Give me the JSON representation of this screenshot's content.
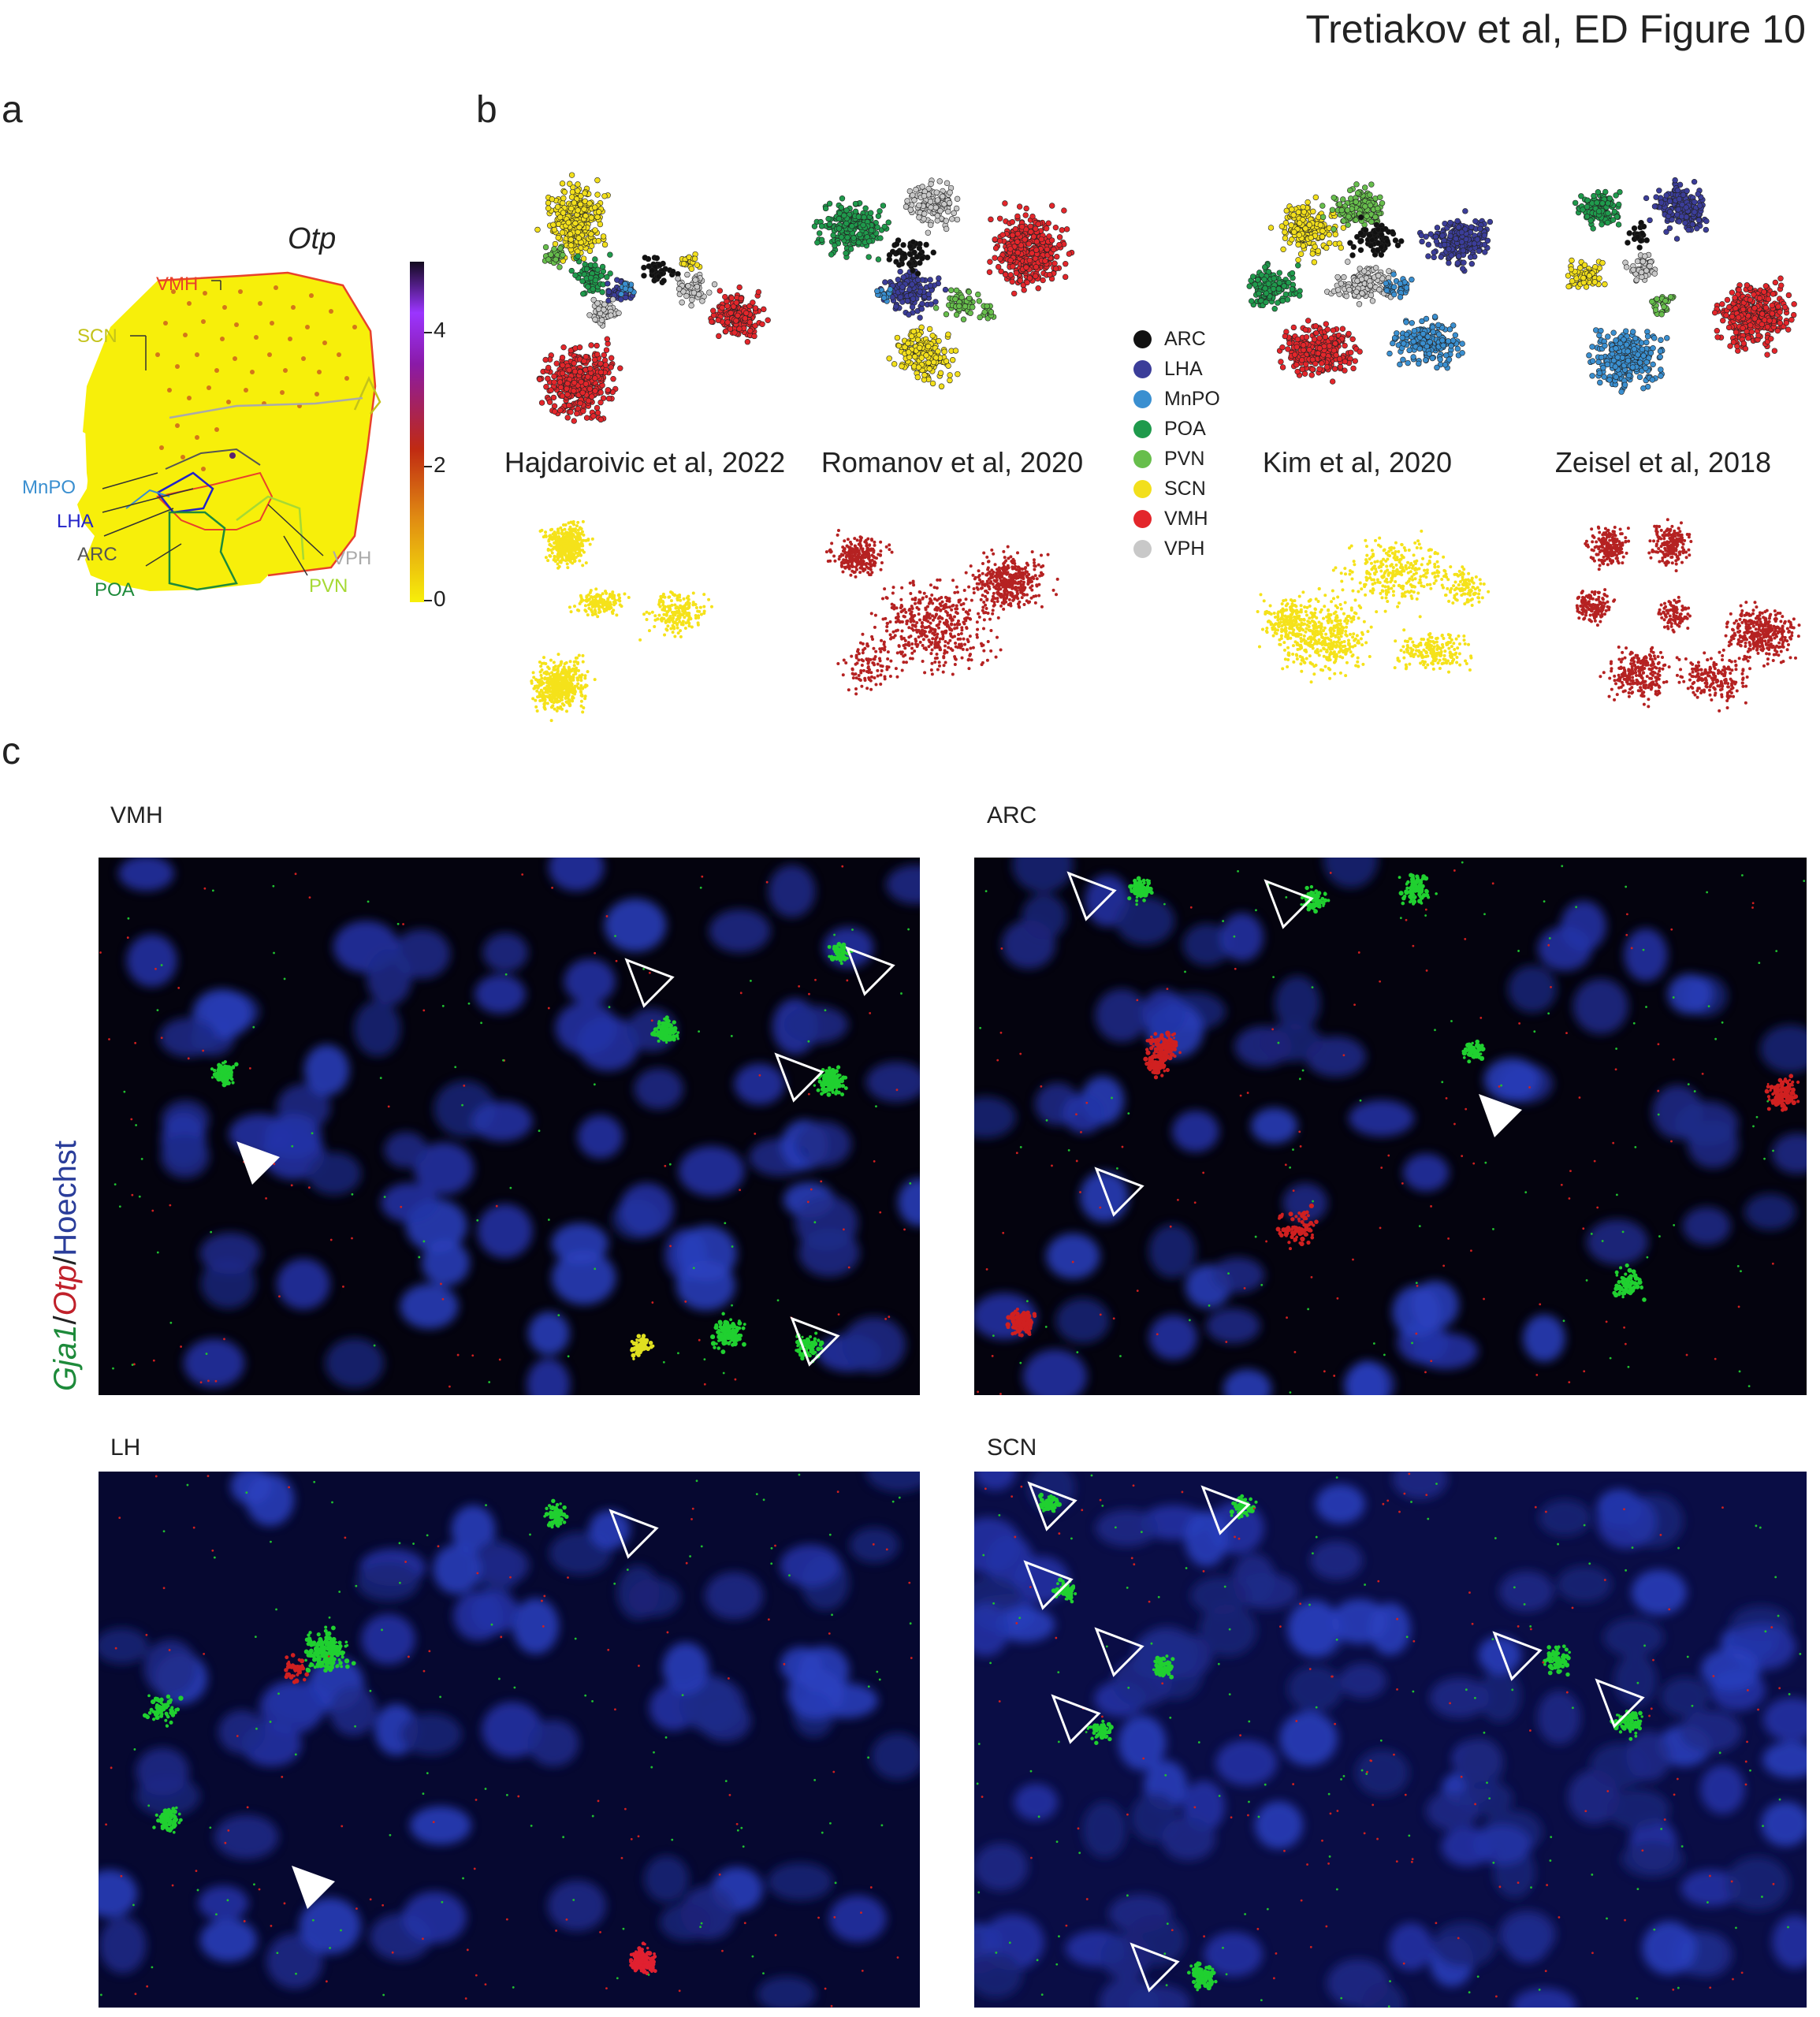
{
  "header": {
    "title": "Tretiakov et al, ED Figure 10"
  },
  "panels": {
    "a": "a",
    "b": "b",
    "c": "c"
  },
  "panel_a": {
    "gene": "Otp",
    "colorbar_ticks": [
      "4",
      "2",
      "0"
    ],
    "region_labels": [
      {
        "text": "VMH",
        "color": "#e8412b"
      },
      {
        "text": "SCN",
        "color": "#c3c21a"
      },
      {
        "text": "MnPO",
        "color": "#3a8fd0"
      },
      {
        "text": "LHA",
        "color": "#2222c8"
      },
      {
        "text": "ARC",
        "color": "#555555"
      },
      {
        "text": "POA",
        "color": "#1d8a3a"
      },
      {
        "text": "VPH",
        "color": "#aaaaaa"
      },
      {
        "text": "PVN",
        "color": "#a6d934"
      }
    ]
  },
  "panel_b": {
    "datasets": [
      "Hajdaroivic et al, 2022",
      "Romanov et al, 2020",
      "Kim et al, 2020",
      "Zeisel et al, 2018"
    ],
    "legend": [
      {
        "label": "ARC",
        "color": "#111111"
      },
      {
        "label": "LHA",
        "color": "#3b3d99"
      },
      {
        "label": "MnPO",
        "color": "#3a8fd0"
      },
      {
        "label": "POA",
        "color": "#1f9a4c"
      },
      {
        "label": "PVN",
        "color": "#67be4c"
      },
      {
        "label": "SCN",
        "color": "#f2df1c"
      },
      {
        "label": "VMH",
        "color": "#e3262b"
      },
      {
        "label": "VPH",
        "color": "#c8c8c8"
      }
    ],
    "expression_colors": [
      "#f5e21a",
      "#b52222",
      "#f5e21a",
      "#b52222"
    ]
  },
  "panel_c": {
    "regions": [
      "VMH",
      "ARC",
      "LH",
      "SCN"
    ],
    "y_label": {
      "gene1": "Gja1",
      "sep1": "/",
      "gene2": "Otp",
      "sep2": "/",
      "stain": "Hoechst"
    },
    "channel_colors": {
      "gene1": "#1d8a3a",
      "gene2": "#c0202a",
      "stain": "#2a3d9a"
    }
  }
}
